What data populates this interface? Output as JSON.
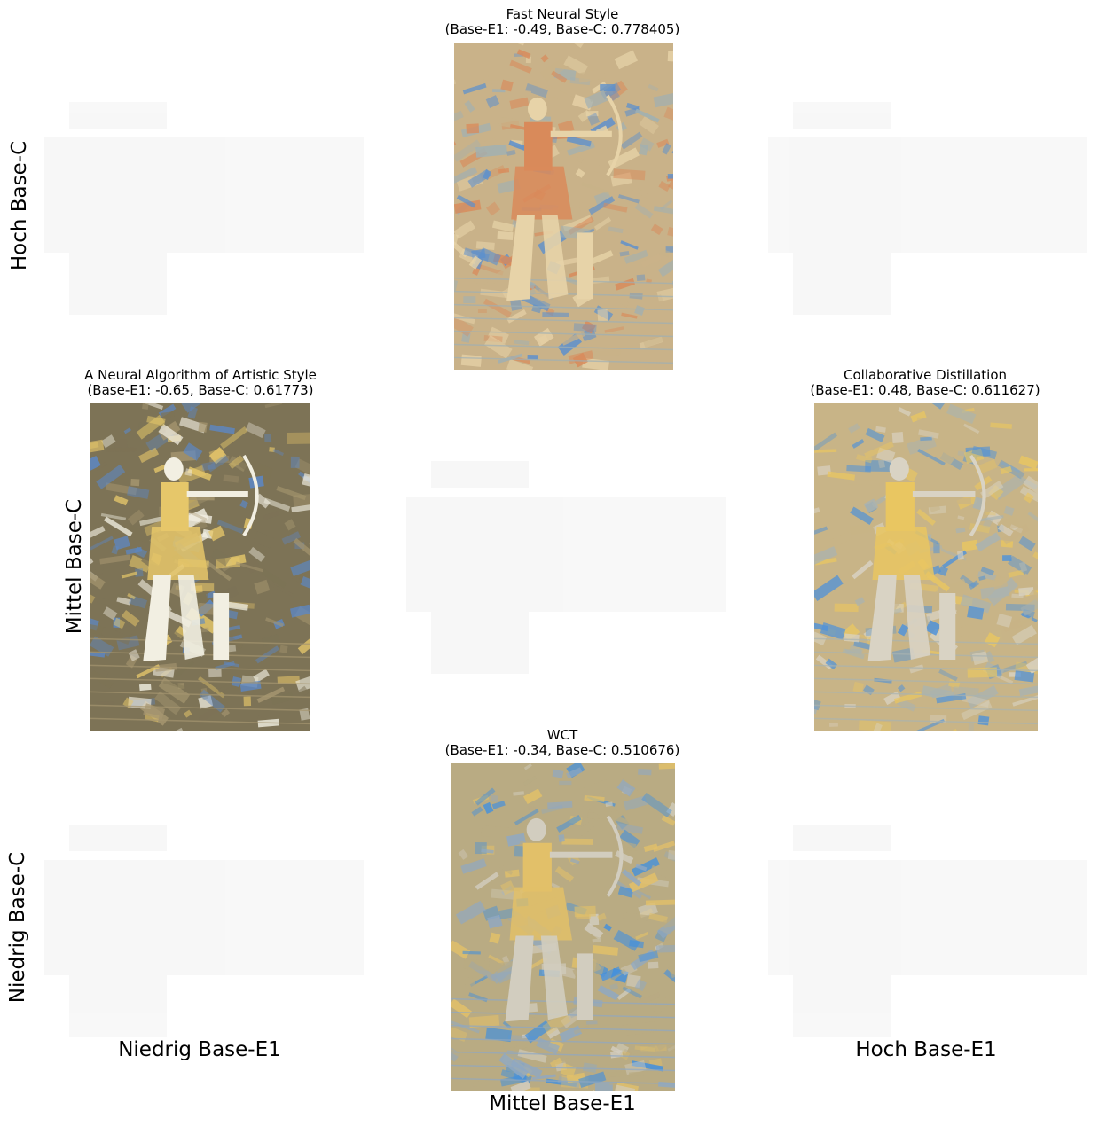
{
  "axes": {
    "x_labels": [
      "Niedrig Base-E1",
      "Mittel Base-E1",
      "Hoch Base-E1"
    ],
    "y_labels": [
      "Hoch Base-C",
      "Mittel Base-C",
      "Niedrig Base-C"
    ]
  },
  "panels": {
    "top_center": {
      "title_line1": "Fast Neural Style",
      "title_line2": "(Base-E1: -0.49, Base-C: 0.778405)",
      "palette": [
        "#c9b289",
        "#9fb0b4",
        "#5a8fcf",
        "#d98a5a",
        "#e7d3a8"
      ]
    },
    "middle_left": {
      "title_line1": "A Neural Algorithm of Artistic Style",
      "title_line2": "(Base-E1: -0.65, Base-C: 0.61773)",
      "palette": [
        "#7d7356",
        "#a69670",
        "#5b88c8",
        "#e6c76a",
        "#f2efe2"
      ]
    },
    "middle_right": {
      "title_line1": "Collaborative Distillation",
      "title_line2": "(Base-E1: 0.48, Base-C: 0.611627)",
      "palette": [
        "#c8b487",
        "#a9b3b1",
        "#4f92d9",
        "#e9c661",
        "#d9d3c4"
      ]
    },
    "bottom_center": {
      "title_line1": "WCT",
      "title_line2": "(Base-E1: -0.34, Base-C: 0.510676)",
      "palette": [
        "#b9ab83",
        "#8fa8c3",
        "#3f8fe0",
        "#e2c069",
        "#d2cdbf"
      ]
    }
  }
}
